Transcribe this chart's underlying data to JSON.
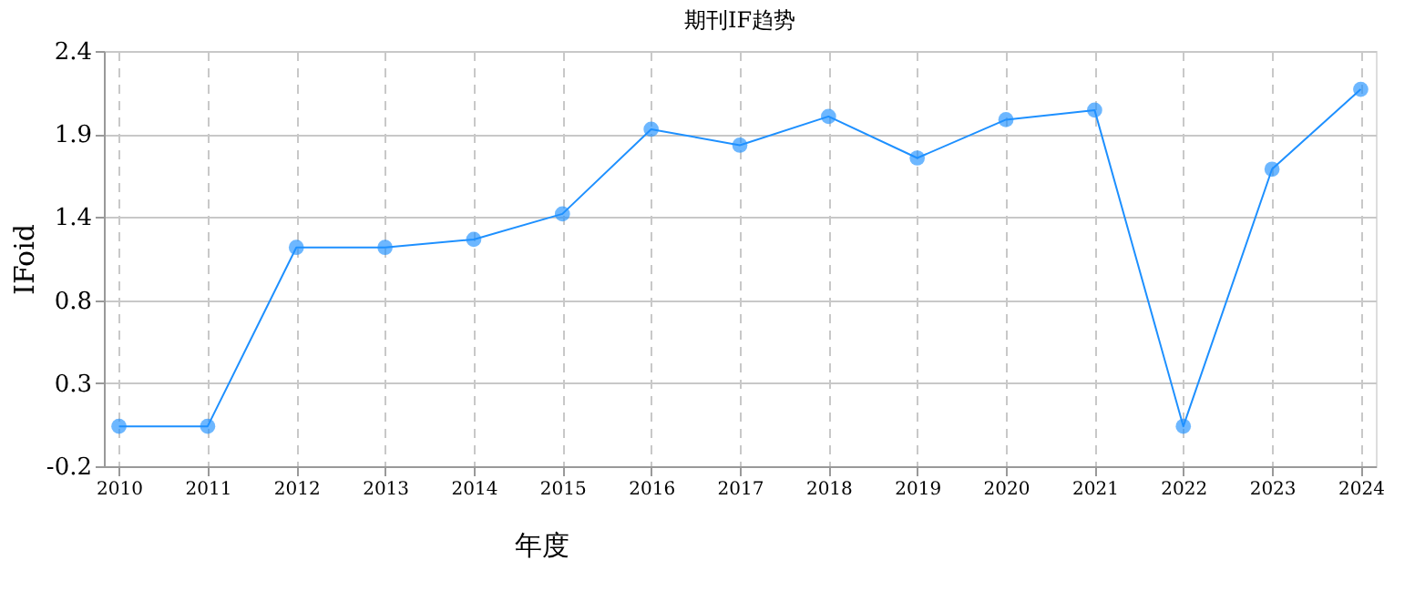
{
  "chart_data": {
    "type": "line",
    "title": "期刊IF趋势",
    "xlabel": "年度",
    "ylabel": "IFoid",
    "categories": [
      "2010",
      "2011",
      "2012",
      "2013",
      "2014",
      "2015",
      "2016",
      "2017",
      "2018",
      "2019",
      "2020",
      "2021",
      "2022",
      "2023",
      "2024"
    ],
    "series": [
      {
        "color": "#1e90ff",
        "values": [
          0.05,
          0.05,
          1.17,
          1.17,
          1.22,
          1.38,
          1.91,
          1.81,
          1.99,
          1.73,
          1.97,
          2.03,
          0.05,
          1.66,
          2.16
        ]
      }
    ],
    "ylim": [
      -0.2,
      2.4
    ],
    "yticks": [
      -0.2,
      {
        "value": 0.32,
        "label": "0.3"
      },
      {
        "value": 0.84,
        "label": "0.8"
      },
      {
        "value": 1.36,
        "label": "1.4"
      },
      {
        "value": 1.88,
        "label": "1.9"
      },
      2.4
    ],
    "grid": true,
    "marker": "circle",
    "line_style": "solid"
  }
}
